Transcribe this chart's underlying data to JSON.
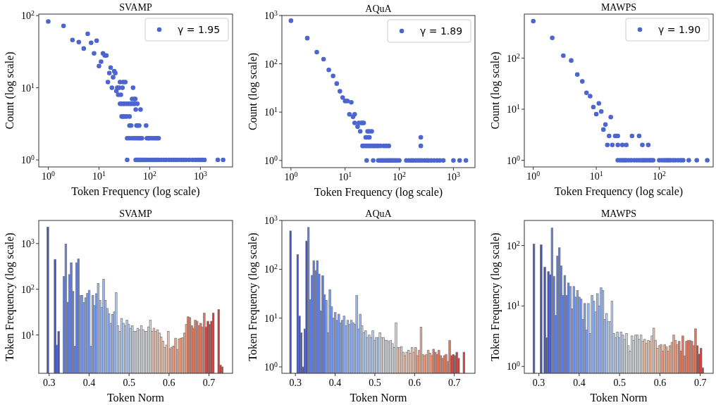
{
  "chart_data": [
    {
      "type": "scatter",
      "title": "SVAMP",
      "xlabel": "Token Frequency (log scale)",
      "ylabel": "Count (log scale)",
      "log": "xy",
      "legend": "top right",
      "marker": "circle",
      "xlim": [
        0.65,
        4300
      ],
      "ylim": [
        0.8,
        105
      ],
      "xticks": [
        {
          "value": 1,
          "label": "10$^{0}$"
        },
        {
          "value": 10,
          "label": "10$^{1}$"
        },
        {
          "value": 100,
          "label": "10$^{2}$"
        },
        {
          "value": 1000,
          "label": "10$^{3}$"
        }
      ],
      "yticks": [
        {
          "value": 1,
          "label": "10$^{0}$"
        },
        {
          "value": 10,
          "label": "10$^{1}$"
        },
        {
          "value": 100,
          "label": "10$^{2}$"
        }
      ],
      "series": [
        {
          "name": "γ = 1.95",
          "color": "#4c65cf",
          "x": [
            1,
            2,
            3,
            4,
            5,
            6,
            7,
            8,
            9,
            10,
            11,
            12,
            13,
            14,
            15,
            16,
            17,
            18,
            19,
            20,
            21,
            22,
            23,
            24,
            25,
            26,
            27,
            29,
            30,
            33,
            47,
            26,
            28,
            30,
            32,
            35,
            38,
            41,
            44,
            48,
            51,
            57,
            45,
            50,
            52,
            53,
            66,
            28,
            30,
            32,
            35,
            40,
            40,
            43,
            55,
            58,
            62,
            85,
            36,
            40,
            45,
            50,
            55,
            60,
            65,
            70,
            88,
            95,
            100,
            110,
            120,
            130,
            140,
            150,
            36,
            53,
            56,
            60,
            63,
            66,
            70,
            75,
            80,
            85,
            90,
            100,
            110,
            120,
            130,
            140,
            150,
            170,
            190,
            210,
            240,
            270,
            300,
            330,
            370,
            420,
            470,
            520,
            600,
            700,
            800,
            900,
            1000,
            1100,
            1200,
            2200,
            2800
          ],
          "values": [
            83,
            72,
            46,
            43,
            35,
            56,
            42,
            30,
            45,
            20,
            23,
            30,
            28,
            28,
            12,
            16,
            19,
            10,
            14,
            17,
            16,
            9,
            10,
            8,
            10,
            12,
            8,
            10,
            12,
            12,
            10,
            6,
            6,
            6,
            6,
            6,
            6,
            6,
            6,
            6,
            6,
            6,
            7,
            7,
            7,
            5,
            5,
            4,
            4,
            4,
            4,
            4,
            3,
            3,
            3,
            3,
            3,
            3,
            2,
            2,
            2,
            2,
            2,
            2,
            2,
            2,
            2,
            2,
            2,
            2,
            2,
            2,
            2,
            2,
            1,
            1,
            1,
            1,
            1,
            1,
            1,
            1,
            1,
            1,
            1,
            1,
            1,
            1,
            1,
            1,
            1,
            1,
            1,
            1,
            1,
            1,
            1,
            1,
            1,
            1,
            1,
            1,
            1,
            1,
            1,
            1,
            1,
            1,
            1,
            1,
            1
          ]
        }
      ]
    },
    {
      "type": "scatter",
      "title": "AQuA",
      "xlabel": "Token Frequency (log scale)",
      "ylabel": "Count (log scale)",
      "log": "xy",
      "legend": "top right",
      "marker": "circle",
      "xlim": [
        0.68,
        2500
      ],
      "ylim": [
        0.71,
        1000
      ],
      "xticks": [
        {
          "value": 1,
          "label": "10$^{0}$"
        },
        {
          "value": 10,
          "label": "10$^{1}$"
        },
        {
          "value": 100,
          "label": "10$^{2}$"
        },
        {
          "value": 1000,
          "label": "10$^{3}$"
        }
      ],
      "yticks": [
        {
          "value": 1,
          "label": "10$^{0}$"
        },
        {
          "value": 10,
          "label": "10$^{1}$"
        },
        {
          "value": 100,
          "label": "10$^{2}$"
        },
        {
          "value": 1000,
          "label": "10$^{3}$"
        }
      ],
      "series": [
        {
          "name": "γ = 1.89",
          "color": "#4c65cf",
          "x": [
            1,
            2,
            3,
            4,
            5,
            6,
            7,
            8,
            9,
            10,
            11,
            13,
            12,
            14,
            15,
            15,
            17,
            18,
            19,
            20,
            21,
            22,
            24,
            25,
            27,
            28,
            250,
            26,
            28,
            31,
            21,
            22,
            24,
            26,
            28,
            30,
            33,
            35,
            38,
            41,
            45,
            52,
            58,
            64,
            250,
            25,
            33,
            41,
            44,
            47,
            50,
            54,
            58,
            62,
            66,
            70,
            75,
            80,
            86,
            92,
            100,
            135,
            150,
            165,
            180,
            200,
            220,
            240,
            260,
            290,
            320,
            350,
            390,
            440,
            500,
            560,
            650,
            1000,
            1300,
            1700
          ],
          "values": [
            780,
            340,
            175,
            125,
            75,
            56,
            39,
            27,
            20,
            17,
            17,
            16,
            9,
            8,
            9,
            6,
            5,
            6,
            4,
            6,
            6,
            6,
            3,
            3,
            3,
            3,
            3,
            4,
            4,
            4,
            2,
            2,
            2,
            2,
            2,
            2,
            2,
            2,
            2,
            2,
            2,
            2,
            2,
            2,
            2,
            1,
            1,
            1,
            1,
            1,
            1,
            1,
            1,
            1,
            1,
            1,
            1,
            1,
            1,
            1,
            1,
            1,
            1,
            1,
            1,
            1,
            1,
            1,
            1,
            1,
            1,
            1,
            1,
            1,
            1,
            1,
            1,
            1,
            1,
            1
          ]
        }
      ]
    },
    {
      "type": "scatter",
      "title": "MAWPS",
      "xlabel": "Token Frequency (log scale)",
      "ylabel": "Count (log scale)",
      "log": "xy",
      "legend": "top right",
      "marker": "circle",
      "xlim": [
        0.72,
        720
      ],
      "ylim": [
        0.74,
        730
      ],
      "xticks": [
        {
          "value": 1,
          "label": "10$^{0}$"
        },
        {
          "value": 10,
          "label": "10$^{1}$"
        },
        {
          "value": 100,
          "label": "10$^{2}$"
        }
      ],
      "yticks": [
        {
          "value": 1,
          "label": "10$^{0}$"
        },
        {
          "value": 10,
          "label": "10$^{1}$"
        },
        {
          "value": 100,
          "label": "10$^{2}$"
        }
      ],
      "series": [
        {
          "name": "γ = 1.90",
          "color": "#4c65cf",
          "x": [
            1,
            2,
            3,
            4,
            5,
            6,
            7,
            8,
            9,
            10,
            11,
            12,
            13,
            14,
            17,
            16,
            20,
            21,
            22,
            37,
            48,
            15,
            18,
            22,
            26,
            30,
            54,
            67,
            22,
            24,
            26,
            28,
            30,
            33,
            36,
            40,
            44,
            48,
            52,
            56,
            60,
            65,
            70,
            75,
            80,
            100,
            110,
            120,
            130,
            140,
            150,
            165,
            180,
            200,
            220,
            240,
            295,
            395,
            580
          ],
          "values": [
            530,
            250,
            112,
            90,
            48,
            35,
            21,
            18,
            11,
            8,
            13,
            9,
            4,
            5,
            7,
            3,
            3,
            3,
            3,
            3,
            3,
            2,
            2,
            2,
            2,
            2,
            2,
            2,
            1,
            1,
            1,
            1,
            1,
            1,
            1,
            1,
            1,
            1,
            1,
            1,
            1,
            1,
            1,
            1,
            1,
            1,
            1,
            1,
            1,
            1,
            1,
            1,
            1,
            1,
            1,
            1,
            1,
            1,
            1
          ]
        }
      ]
    },
    {
      "type": "histogram",
      "title": "SVAMP",
      "xlabel": "Token Norm",
      "ylabel": "Token Frequency (log scale)",
      "log": true,
      "xlim": [
        0.274,
        0.759
      ],
      "ylim": [
        1.45,
        3200
      ],
      "xticks": [
        0.3,
        0.4,
        0.5,
        0.6,
        0.7
      ],
      "yticks": [
        {
          "value": 10,
          "label": "10$^{1}$"
        },
        {
          "value": 100,
          "label": "10$^{2}$"
        },
        {
          "value": 1000,
          "label": "10$^{3}$"
        }
      ],
      "bins": [
        0.2945,
        0.299,
        0.3125,
        0.317,
        0.3215,
        0.326,
        0.335,
        0.3395,
        0.344,
        0.3485,
        0.353,
        0.3575,
        0.362,
        0.3665,
        0.371,
        0.3755,
        0.38,
        0.3845,
        0.389,
        0.3935,
        0.398,
        0.4025,
        0.407,
        0.4115,
        0.416,
        0.4205,
        0.425,
        0.4295,
        0.434,
        0.4385,
        0.443,
        0.4475,
        0.452,
        0.4565,
        0.461,
        0.4655,
        0.47,
        0.4745,
        0.479,
        0.4835,
        0.488,
        0.4925,
        0.497,
        0.5015,
        0.506,
        0.5105,
        0.515,
        0.5195,
        0.524,
        0.5285,
        0.533,
        0.5375,
        0.542,
        0.5465,
        0.551,
        0.5555,
        0.56,
        0.5645,
        0.569,
        0.5735,
        0.578,
        0.5825,
        0.587,
        0.5915,
        0.596,
        0.6005,
        0.605,
        0.6095,
        0.614,
        0.6185,
        0.623,
        0.6275,
        0.632,
        0.6365,
        0.641,
        0.6455,
        0.65,
        0.6545,
        0.659,
        0.6635,
        0.668,
        0.6725,
        0.677,
        0.6815,
        0.686,
        0.6905,
        0.695,
        0.6995,
        0.704,
        0.7085,
        0.713,
        0.722,
        0.7265,
        0.731,
        0.7355
      ],
      "values": [
        2300,
        null,
        450,
        6,
        12,
        null,
        190,
        980,
        52,
        210,
        380,
        90,
        5.7,
        380,
        460,
        73,
        73,
        51,
        65,
        81,
        95,
        5.7,
        73,
        44,
        80,
        134,
        57,
        40,
        165,
        57,
        38,
        29,
        18,
        28,
        32,
        84,
        16,
        12,
        23,
        18,
        16,
        21,
        17,
        14,
        16,
        12,
        12,
        14,
        13,
        16,
        13,
        12,
        12,
        15,
        21,
        12,
        14,
        12,
        13,
        11,
        9,
        7.3,
        5.3,
        6,
        12,
        5,
        5.4,
        5.7,
        8.5,
        4.8,
        8.2,
        8.5,
        8.7,
        11,
        17,
        25,
        24,
        16,
        14,
        21,
        20,
        16,
        18,
        15,
        30,
        15,
        20,
        17,
        20,
        30,
        null,
        36,
        2.2,
        2
      ],
      "colors": [
        "#3d50c3",
        null,
        "#3d50c3",
        "#3d50c3",
        "#3d50c3",
        null,
        "#5b7be5",
        "#5b7be5",
        "#5b7be5",
        "#5b7be5",
        "#5b7be5",
        "#5b7be5",
        "#5b7be5",
        "#5b7be5",
        "#5b7be5",
        "#7a9df8",
        "#7a9df8",
        "#7a9df8",
        "#7a9df8",
        "#7a9df8",
        "#7a9df8",
        "#7a9df8",
        "#7a9df8",
        "#7a9df8",
        "#7a9df8",
        "#9abbff",
        "#9abbff",
        "#9abbff",
        "#9abbff",
        "#9abbff",
        "#9abbff",
        "#9abbff",
        "#9abbff",
        "#9abbff",
        "#9abbff",
        "#bcd2f7",
        "#bcd2f7",
        "#bcd2f7",
        "#bcd2f7",
        "#bcd2f7",
        "#bcd2f7",
        "#bcd2f7",
        "#bcd2f7",
        "#bcd2f7",
        "#bcd2f7",
        "#dadce0",
        "#dadce0",
        "#dadce0",
        "#dadce0",
        "#dadce0",
        "#dadce0",
        "#dadce0",
        "#dadce0",
        "#dadce0",
        "#dadce0",
        "#f2cab5",
        "#f2cab5",
        "#f2cab5",
        "#f2cab5",
        "#f2cab5",
        "#f2cab5",
        "#f2cab5",
        "#f2cab5",
        "#f2cab5",
        "#f2cab5",
        "#f6a789",
        "#f6a789",
        "#f6a789",
        "#f6a789",
        "#f6a789",
        "#f6a789",
        "#f6a789",
        "#f6a789",
        "#f6a789",
        "#f6a789",
        "#e8785d",
        "#e8785d",
        "#e8785d",
        "#e8785d",
        "#e8785d",
        "#e8785d",
        "#e8785d",
        "#e8785d",
        "#e8785d",
        "#e8785d",
        "#c43a38",
        "#c43a38",
        "#c43a38",
        "#c43a38",
        "#c43a38",
        null,
        "#c43a38",
        "#c43a38",
        "#c43a38"
      ]
    },
    {
      "type": "histogram",
      "title": "AQuA",
      "xlabel": "Token Norm",
      "ylabel": "Token Frequency (log scale)",
      "log": true,
      "xlim": [
        0.266,
        0.752
      ],
      "ylim": [
        0.74,
        1000
      ],
      "xticks": [
        0.3,
        0.4,
        0.5,
        0.6,
        0.7
      ],
      "yticks": [
        {
          "value": 1,
          "label": "10$^{0}$"
        },
        {
          "value": 10,
          "label": "10$^{1}$"
        },
        {
          "value": 100,
          "label": "10$^{2}$"
        },
        {
          "value": 1000,
          "label": "10$^{3}$"
        }
      ],
      "bins": [
        0.2855,
        0.29,
        0.3035,
        0.308,
        0.3125,
        0.317,
        0.3215,
        0.326,
        0.3305,
        0.335,
        0.3395,
        0.344,
        0.3485,
        0.353,
        0.3575,
        0.362,
        0.3665,
        0.371,
        0.3755,
        0.38,
        0.3845,
        0.389,
        0.3935,
        0.398,
        0.4025,
        0.407,
        0.4115,
        0.416,
        0.4205,
        0.425,
        0.4295,
        0.434,
        0.4385,
        0.443,
        0.4475,
        0.452,
        0.4565,
        0.461,
        0.4655,
        0.47,
        0.4745,
        0.479,
        0.4835,
        0.488,
        0.4925,
        0.497,
        0.5015,
        0.506,
        0.5105,
        0.515,
        0.5195,
        0.524,
        0.5285,
        0.533,
        0.5375,
        0.542,
        0.5465,
        0.551,
        0.5555,
        0.56,
        0.5645,
        0.569,
        0.5735,
        0.578,
        0.5825,
        0.587,
        0.5915,
        0.596,
        0.6005,
        0.605,
        0.6095,
        0.614,
        0.6185,
        0.623,
        0.6275,
        0.632,
        0.6365,
        0.641,
        0.6455,
        0.65,
        0.6545,
        0.659,
        0.6635,
        0.668,
        0.6725,
        0.677,
        0.6815,
        0.686,
        0.6905,
        0.695,
        0.6995,
        0.704,
        0.7085,
        0.713,
        0.722,
        0.7265
      ],
      "values": [
        610,
        null,
        200,
        11,
        5,
        1,
        6,
        380,
        720,
        24,
        75,
        150,
        94,
        150,
        80,
        14,
        74,
        30,
        23,
        5,
        38,
        17,
        10,
        13,
        9,
        12,
        8,
        9,
        11,
        7,
        9,
        7.5,
        9,
        8,
        7.5,
        29,
        6,
        12,
        7,
        5,
        5.5,
        4,
        4.5,
        4,
        5.5,
        3.5,
        4,
        4,
        5,
        4,
        4,
        3.5,
        3.5,
        3.3,
        3.5,
        3,
        2.5,
        8,
        2.5,
        2.5,
        2.6,
        2,
        1.7,
        2,
        2.2,
        1.9,
        2.5,
        2,
        2.5,
        1.7,
        2.2,
        6.5,
        1.8,
        1.7,
        1.8,
        2.2,
        1.9,
        1.7,
        2.3,
        2,
        1.8,
        2.2,
        1.7,
        1.5,
        1.7,
        1.8,
        1.3,
        3.5,
        1.7,
        1.8,
        1.7,
        2,
        1.5,
        null,
        2
      ],
      "colors": [
        "#3d50c3",
        null,
        "#3d50c3",
        "#3d50c3",
        "#3d50c3",
        "#3d50c3",
        "#3d50c3",
        "#3d50c3",
        "#5b7be5",
        "#5b7be5",
        "#5b7be5",
        "#5b7be5",
        "#5b7be5",
        "#5b7be5",
        "#5b7be5",
        "#5b7be5",
        "#5b7be5",
        "#5b7be5",
        "#7a9df8",
        "#7a9df8",
        "#7a9df8",
        "#7a9df8",
        "#7a9df8",
        "#7a9df8",
        "#7a9df8",
        "#7a9df8",
        "#7a9df8",
        "#7a9df8",
        "#9abbff",
        "#9abbff",
        "#9abbff",
        "#9abbff",
        "#9abbff",
        "#9abbff",
        "#9abbff",
        "#9abbff",
        "#9abbff",
        "#9abbff",
        "#bcd2f7",
        "#bcd2f7",
        "#bcd2f7",
        "#bcd2f7",
        "#bcd2f7",
        "#bcd2f7",
        "#bcd2f7",
        "#bcd2f7",
        "#bcd2f7",
        "#bcd2f7",
        "#dadce0",
        "#dadce0",
        "#dadce0",
        "#dadce0",
        "#dadce0",
        "#dadce0",
        "#dadce0",
        "#dadce0",
        "#dadce0",
        "#dadce0",
        "#f2cab5",
        "#f2cab5",
        "#f2cab5",
        "#f2cab5",
        "#f2cab5",
        "#f2cab5",
        "#f2cab5",
        "#f2cab5",
        "#f2cab5",
        "#f2cab5",
        "#f6a789",
        "#f6a789",
        "#f6a789",
        "#f6a789",
        "#f6a789",
        "#f6a789",
        "#f6a789",
        "#f6a789",
        "#f6a789",
        "#f6a789",
        "#e8785d",
        "#e8785d",
        "#e8785d",
        "#e8785d",
        "#e8785d",
        "#e8785d",
        "#e8785d",
        "#e8785d",
        "#e8785d",
        "#e8785d",
        "#c43a38",
        "#c43a38",
        "#c43a38",
        "#c43a38",
        "#c43a38",
        null,
        "#c43a38"
      ]
    },
    {
      "type": "histogram",
      "title": "MAWPS",
      "xlabel": "Token Norm",
      "ylabel": "Token Frequency (log scale)",
      "log": true,
      "xlim": [
        0.264,
        0.732
      ],
      "ylim": [
        0.77,
        260
      ],
      "xticks": [
        0.3,
        0.4,
        0.5,
        0.6,
        0.7
      ],
      "yticks": [
        {
          "value": 1,
          "label": "10$^{0}$"
        },
        {
          "value": 10,
          "label": "10$^{1}$"
        },
        {
          "value": 100,
          "label": "10$^{2}$"
        }
      ],
      "bins": [
        0.2855,
        0.29,
        0.3035,
        0.308,
        0.3125,
        0.317,
        0.3215,
        0.326,
        0.3305,
        0.335,
        0.3395,
        0.344,
        0.3485,
        0.353,
        0.3575,
        0.362,
        0.3665,
        0.371,
        0.3755,
        0.38,
        0.3845,
        0.389,
        0.3935,
        0.398,
        0.4025,
        0.407,
        0.4115,
        0.416,
        0.4205,
        0.425,
        0.4295,
        0.434,
        0.4385,
        0.443,
        0.4475,
        0.452,
        0.4565,
        0.461,
        0.4655,
        0.47,
        0.4745,
        0.479,
        0.4835,
        0.488,
        0.4925,
        0.497,
        0.5015,
        0.506,
        0.5105,
        0.515,
        0.5195,
        0.524,
        0.5285,
        0.533,
        0.5375,
        0.542,
        0.5465,
        0.551,
        0.5555,
        0.56,
        0.5645,
        0.569,
        0.5735,
        0.578,
        0.5825,
        0.587,
        0.5915,
        0.596,
        0.6005,
        0.605,
        0.6095,
        0.614,
        0.6185,
        0.623,
        0.6275,
        0.632,
        0.6365,
        0.641,
        0.6455,
        0.65,
        0.6545,
        0.659,
        0.6635,
        0.668,
        0.6725,
        0.677,
        0.6815,
        0.686,
        0.6905,
        0.695,
        0.6995,
        0.704,
        0.7085
      ],
      "values": [
        106,
        null,
        103,
        null,
        44,
        3,
        37,
        33,
        195,
        31,
        7,
        67,
        92,
        46,
        15,
        32,
        15,
        24,
        21,
        9,
        21,
        14,
        18,
        14,
        13,
        6,
        11,
        4,
        11,
        3.5,
        15,
        12,
        8,
        16,
        10,
        20,
        18,
        6,
        7.5,
        5.5,
        5.5,
        12,
        3.5,
        3,
        3.7,
        3,
        3.7,
        3.3,
        2.8,
        3.5,
        2.2,
        1.8,
        3.2,
        2.7,
        3.3,
        3.3,
        2.8,
        3.3,
        2.6,
        2.8,
        2.4,
        2.7,
        2.6,
        3.2,
        4.3,
        2.7,
        2,
        2.2,
        2.3,
        1.8,
        2.3,
        2.1,
        1.8,
        2.2,
        2.5,
        3.3,
        2.7,
        2.3,
        2.6,
        1.8,
        3.2,
        1.5,
        2.6,
        2.7,
        2.7,
        2.6,
        2.2,
        4.2,
        2.2,
        1.6,
        2,
        0.95
      ],
      "colors": [
        "#3d50c3",
        null,
        "#3d50c3",
        null,
        "#3d50c3",
        "#3d50c3",
        "#3d50c3",
        "#3d50c3",
        "#5b7be5",
        "#5b7be5",
        "#5b7be5",
        "#5b7be5",
        "#5b7be5",
        "#5b7be5",
        "#5b7be5",
        "#5b7be5",
        "#5b7be5",
        "#5b7be5",
        "#7a9df8",
        "#7a9df8",
        "#7a9df8",
        "#7a9df8",
        "#7a9df8",
        "#7a9df8",
        "#7a9df8",
        "#7a9df8",
        "#7a9df8",
        "#7a9df8",
        "#9abbff",
        "#9abbff",
        "#9abbff",
        "#9abbff",
        "#9abbff",
        "#9abbff",
        "#9abbff",
        "#9abbff",
        "#9abbff",
        "#9abbff",
        "#bcd2f7",
        "#bcd2f7",
        "#bcd2f7",
        "#bcd2f7",
        "#bcd2f7",
        "#bcd2f7",
        "#bcd2f7",
        "#bcd2f7",
        "#bcd2f7",
        "#bcd2f7",
        "#dadce0",
        "#dadce0",
        "#dadce0",
        "#dadce0",
        "#dadce0",
        "#dadce0",
        "#dadce0",
        "#dadce0",
        "#dadce0",
        "#dadce0",
        "#f2cab5",
        "#f2cab5",
        "#f2cab5",
        "#f2cab5",
        "#f2cab5",
        "#f2cab5",
        "#f2cab5",
        "#f2cab5",
        "#f2cab5",
        "#f2cab5",
        "#f6a789",
        "#f6a789",
        "#f6a789",
        "#f6a789",
        "#f6a789",
        "#f6a789",
        "#f6a789",
        "#f6a789",
        "#f6a789",
        "#f6a789",
        "#e8785d",
        "#e8785d",
        "#e8785d",
        "#e8785d",
        "#e8785d",
        "#e8785d",
        "#e8785d",
        "#e8785d",
        "#e8785d",
        "#e8785d",
        "#c43a38",
        "#c43a38",
        "#c43a38",
        "#c43a38"
      ]
    }
  ]
}
